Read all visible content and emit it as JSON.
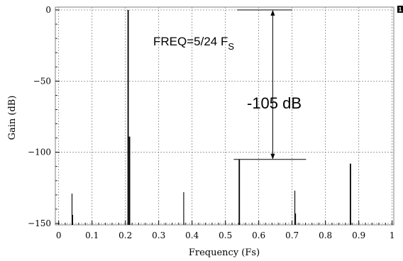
{
  "chart_data": {
    "type": "line",
    "xlabel": "Frequency (Fs)",
    "ylabel": "Gain (dB)",
    "xlim": [
      -0.01,
      1.005
    ],
    "ylim": [
      -151,
      2
    ],
    "xticks": [
      0,
      0.1,
      0.2,
      0.3,
      0.4,
      0.5,
      0.6,
      0.7,
      0.8,
      0.9,
      1
    ],
    "xtick_labels": [
      "0",
      "0.1",
      "0.2",
      "0.3",
      "0.4",
      "0.5",
      "0.6",
      "0.7",
      "0.8",
      "0.9",
      "1"
    ],
    "yticks": [
      0,
      -50,
      -100,
      -150
    ],
    "ytick_labels": [
      "0",
      "−50",
      "−100",
      "−150"
    ],
    "grid": true,
    "series": [
      {
        "color": "#000000",
        "spikes": [
          {
            "x": 0.04,
            "y": -129
          },
          {
            "x": 0.042,
            "y": -144
          },
          {
            "x": 0.2083,
            "y": 0
          },
          {
            "x": 0.2125,
            "y": -89
          },
          {
            "x": 0.375,
            "y": -128
          },
          {
            "x": 0.5417,
            "y": -105
          },
          {
            "x": 0.7083,
            "y": -127
          },
          {
            "x": 0.7105,
            "y": -143
          },
          {
            "x": 0.875,
            "y": -108
          }
        ]
      }
    ],
    "annotations": {
      "freq_label": "FREQ=5/24 F",
      "freq_subscript": "S",
      "db_label": "-105 dB"
    },
    "corner_badge": "1"
  }
}
